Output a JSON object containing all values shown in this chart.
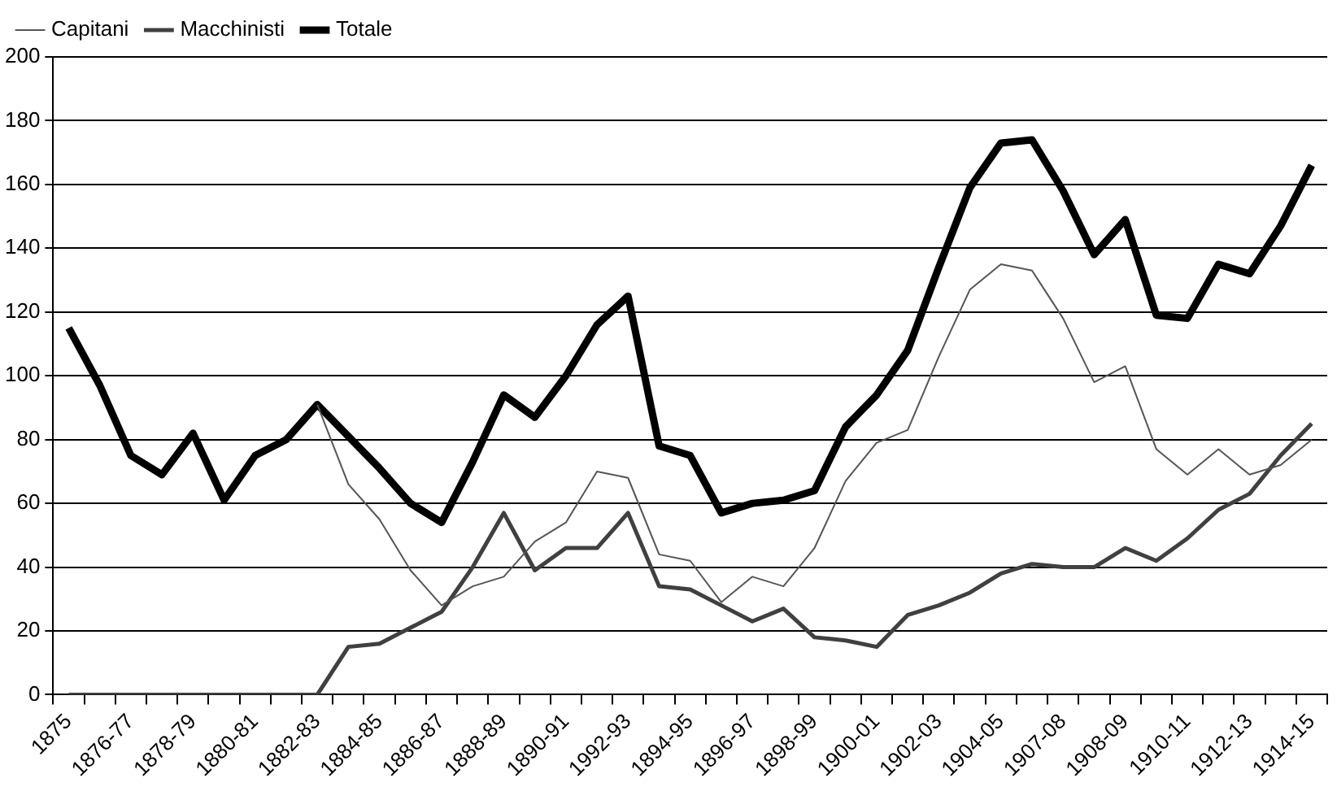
{
  "chart_data": {
    "type": "line",
    "categories": [
      "1875",
      null,
      "1876-77",
      null,
      "1878-79",
      null,
      "1880-81",
      null,
      "1882-83",
      null,
      "1884-85",
      null,
      "1886-87",
      null,
      "1888-89",
      null,
      "1890-91",
      null,
      "1992-93",
      null,
      "1894-95",
      null,
      "1896-97",
      null,
      "1898-99",
      null,
      "1900-01",
      null,
      "1902-03",
      null,
      "1904-05",
      null,
      "1907-08",
      null,
      "1908-09",
      null,
      "1910-11",
      null,
      "1912-13",
      null,
      "1914-15"
    ],
    "series": [
      {
        "name": "Capitani",
        "color": "#555555",
        "values": [
          null,
          null,
          null,
          null,
          null,
          null,
          null,
          null,
          91,
          66,
          55,
          39,
          28,
          34,
          37,
          48,
          54,
          70,
          68,
          44,
          42,
          29,
          37,
          34,
          46,
          67,
          79,
          83,
          106,
          127,
          135,
          133,
          118,
          98,
          103,
          77,
          69,
          77,
          69,
          72,
          80
        ]
      },
      {
        "name": "Macchinisti",
        "color": "#404040",
        "values": [
          0,
          0,
          0,
          0,
          0,
          0,
          0,
          0,
          0,
          15,
          16,
          21,
          26,
          40,
          57,
          39,
          46,
          46,
          57,
          34,
          33,
          28,
          23,
          27,
          18,
          17,
          15,
          25,
          28,
          32,
          38,
          41,
          40,
          40,
          46,
          42,
          49,
          58,
          63,
          75,
          85
        ]
      },
      {
        "name": "Totale",
        "color": "#000000",
        "values": [
          115,
          97,
          75,
          69,
          82,
          61,
          75,
          80,
          91,
          81,
          71,
          60,
          54,
          73,
          94,
          87,
          100,
          116,
          125,
          78,
          75,
          57,
          60,
          61,
          64,
          84,
          94,
          108,
          134,
          159,
          173,
          174,
          158,
          138,
          149,
          119,
          118,
          135,
          132,
          147,
          166
        ]
      }
    ],
    "ylim": [
      0,
      200
    ],
    "yticks": [
      0,
      20,
      40,
      60,
      80,
      100,
      120,
      140,
      160,
      180,
      200
    ],
    "grid": "y",
    "legend": "top",
    "marker": "none",
    "line_style": "solid"
  }
}
